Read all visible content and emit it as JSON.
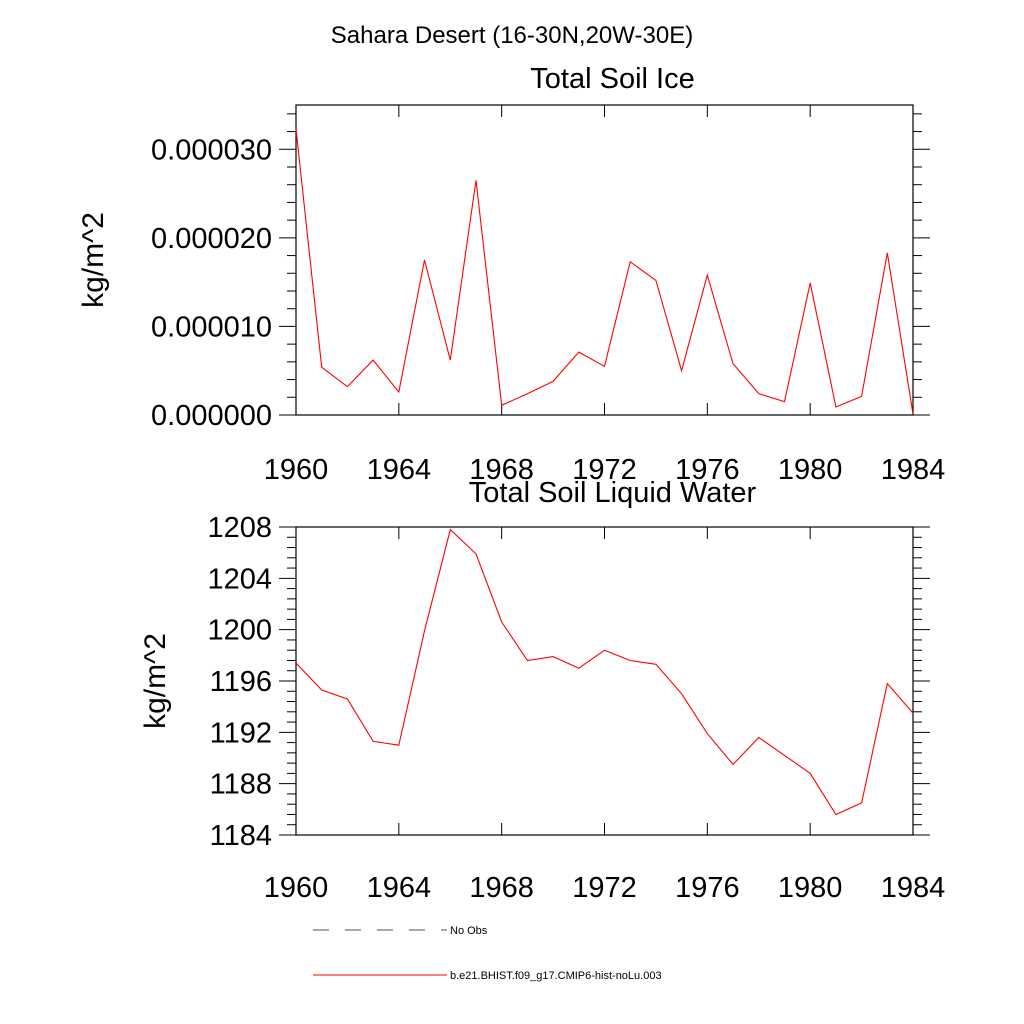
{
  "supertitle": "Sahara Desert (16-30N,20W-30E)",
  "chart_data": [
    {
      "type": "line",
      "title": "Total Soil Ice",
      "xlabel": "",
      "ylabel": "kg/m^2",
      "xlim": [
        1960,
        1984
      ],
      "ylim": [
        0,
        3.5e-05
      ],
      "x_ticks": [
        1960,
        1964,
        1968,
        1972,
        1976,
        1980,
        1984
      ],
      "x_tick_labels": [
        "1960",
        "1964",
        "1968",
        "1972",
        "1976",
        "1980",
        "1984"
      ],
      "y_ticks": [
        0,
        1e-05,
        2e-05,
        3e-05
      ],
      "y_tick_labels": [
        "0.000000",
        "0.000010",
        "0.000020",
        "0.000030"
      ],
      "grid": false,
      "series": [
        {
          "name": "b.e21.BHIST.f09_g17.CMIP6-hist-noLu.003",
          "color": "#ff0000",
          "x": [
            1960,
            1961,
            1962,
            1963,
            1964,
            1965,
            1966,
            1967,
            1968,
            1969,
            1970,
            1971,
            1972,
            1973,
            1974,
            1975,
            1976,
            1977,
            1978,
            1979,
            1980,
            1981,
            1982,
            1983,
            1984
          ],
          "values": [
            3.23e-05,
            5.4e-06,
            3.2e-06,
            6.2e-06,
            2.6e-06,
            1.75e-05,
            6.2e-06,
            2.65e-05,
            1.1e-06,
            2.4e-06,
            3.8e-06,
            7.1e-06,
            5.5e-06,
            1.73e-05,
            1.52e-05,
            5e-06,
            1.58e-05,
            5.8e-06,
            2.4e-06,
            1.5e-06,
            1.49e-05,
            9e-07,
            2.1e-06,
            1.83e-05,
            1e-07
          ]
        }
      ]
    },
    {
      "type": "line",
      "title": "Total Soil Liquid Water",
      "xlabel": "",
      "ylabel": "kg/m^2",
      "xlim": [
        1960,
        1984
      ],
      "ylim": [
        1184,
        1208
      ],
      "x_ticks": [
        1960,
        1964,
        1968,
        1972,
        1976,
        1980,
        1984
      ],
      "x_tick_labels": [
        "1960",
        "1964",
        "1968",
        "1972",
        "1976",
        "1980",
        "1984"
      ],
      "y_ticks": [
        1184,
        1188,
        1192,
        1196,
        1200,
        1204,
        1208
      ],
      "y_tick_labels": [
        "1184",
        "1188",
        "1192",
        "1196",
        "1200",
        "1204",
        "1208"
      ],
      "grid": false,
      "series": [
        {
          "name": "b.e21.BHIST.f09_g17.CMIP6-hist-noLu.003",
          "color": "#ff0000",
          "x": [
            1960,
            1961,
            1962,
            1963,
            1964,
            1965,
            1966,
            1967,
            1968,
            1969,
            1970,
            1971,
            1972,
            1973,
            1974,
            1975,
            1976,
            1977,
            1978,
            1979,
            1980,
            1981,
            1982,
            1983,
            1984
          ],
          "values": [
            1197.4,
            1195.3,
            1194.6,
            1191.3,
            1191.0,
            1199.9,
            1207.8,
            1205.9,
            1200.6,
            1197.6,
            1197.9,
            1197.0,
            1198.4,
            1197.6,
            1197.3,
            1195.0,
            1191.9,
            1189.5,
            1191.6,
            1190.2,
            1188.8,
            1185.6,
            1186.5,
            1195.8,
            1193.5
          ]
        }
      ]
    }
  ],
  "legend": {
    "placement": "bottom-left",
    "entries": [
      {
        "label": "No Obs",
        "color": "#4a4a7a",
        "style": "dashed"
      },
      {
        "label": "b.e21.BHIST.f09_g17.CMIP6-hist-noLu.003",
        "color": "#ff0000",
        "style": "solid"
      }
    ]
  }
}
